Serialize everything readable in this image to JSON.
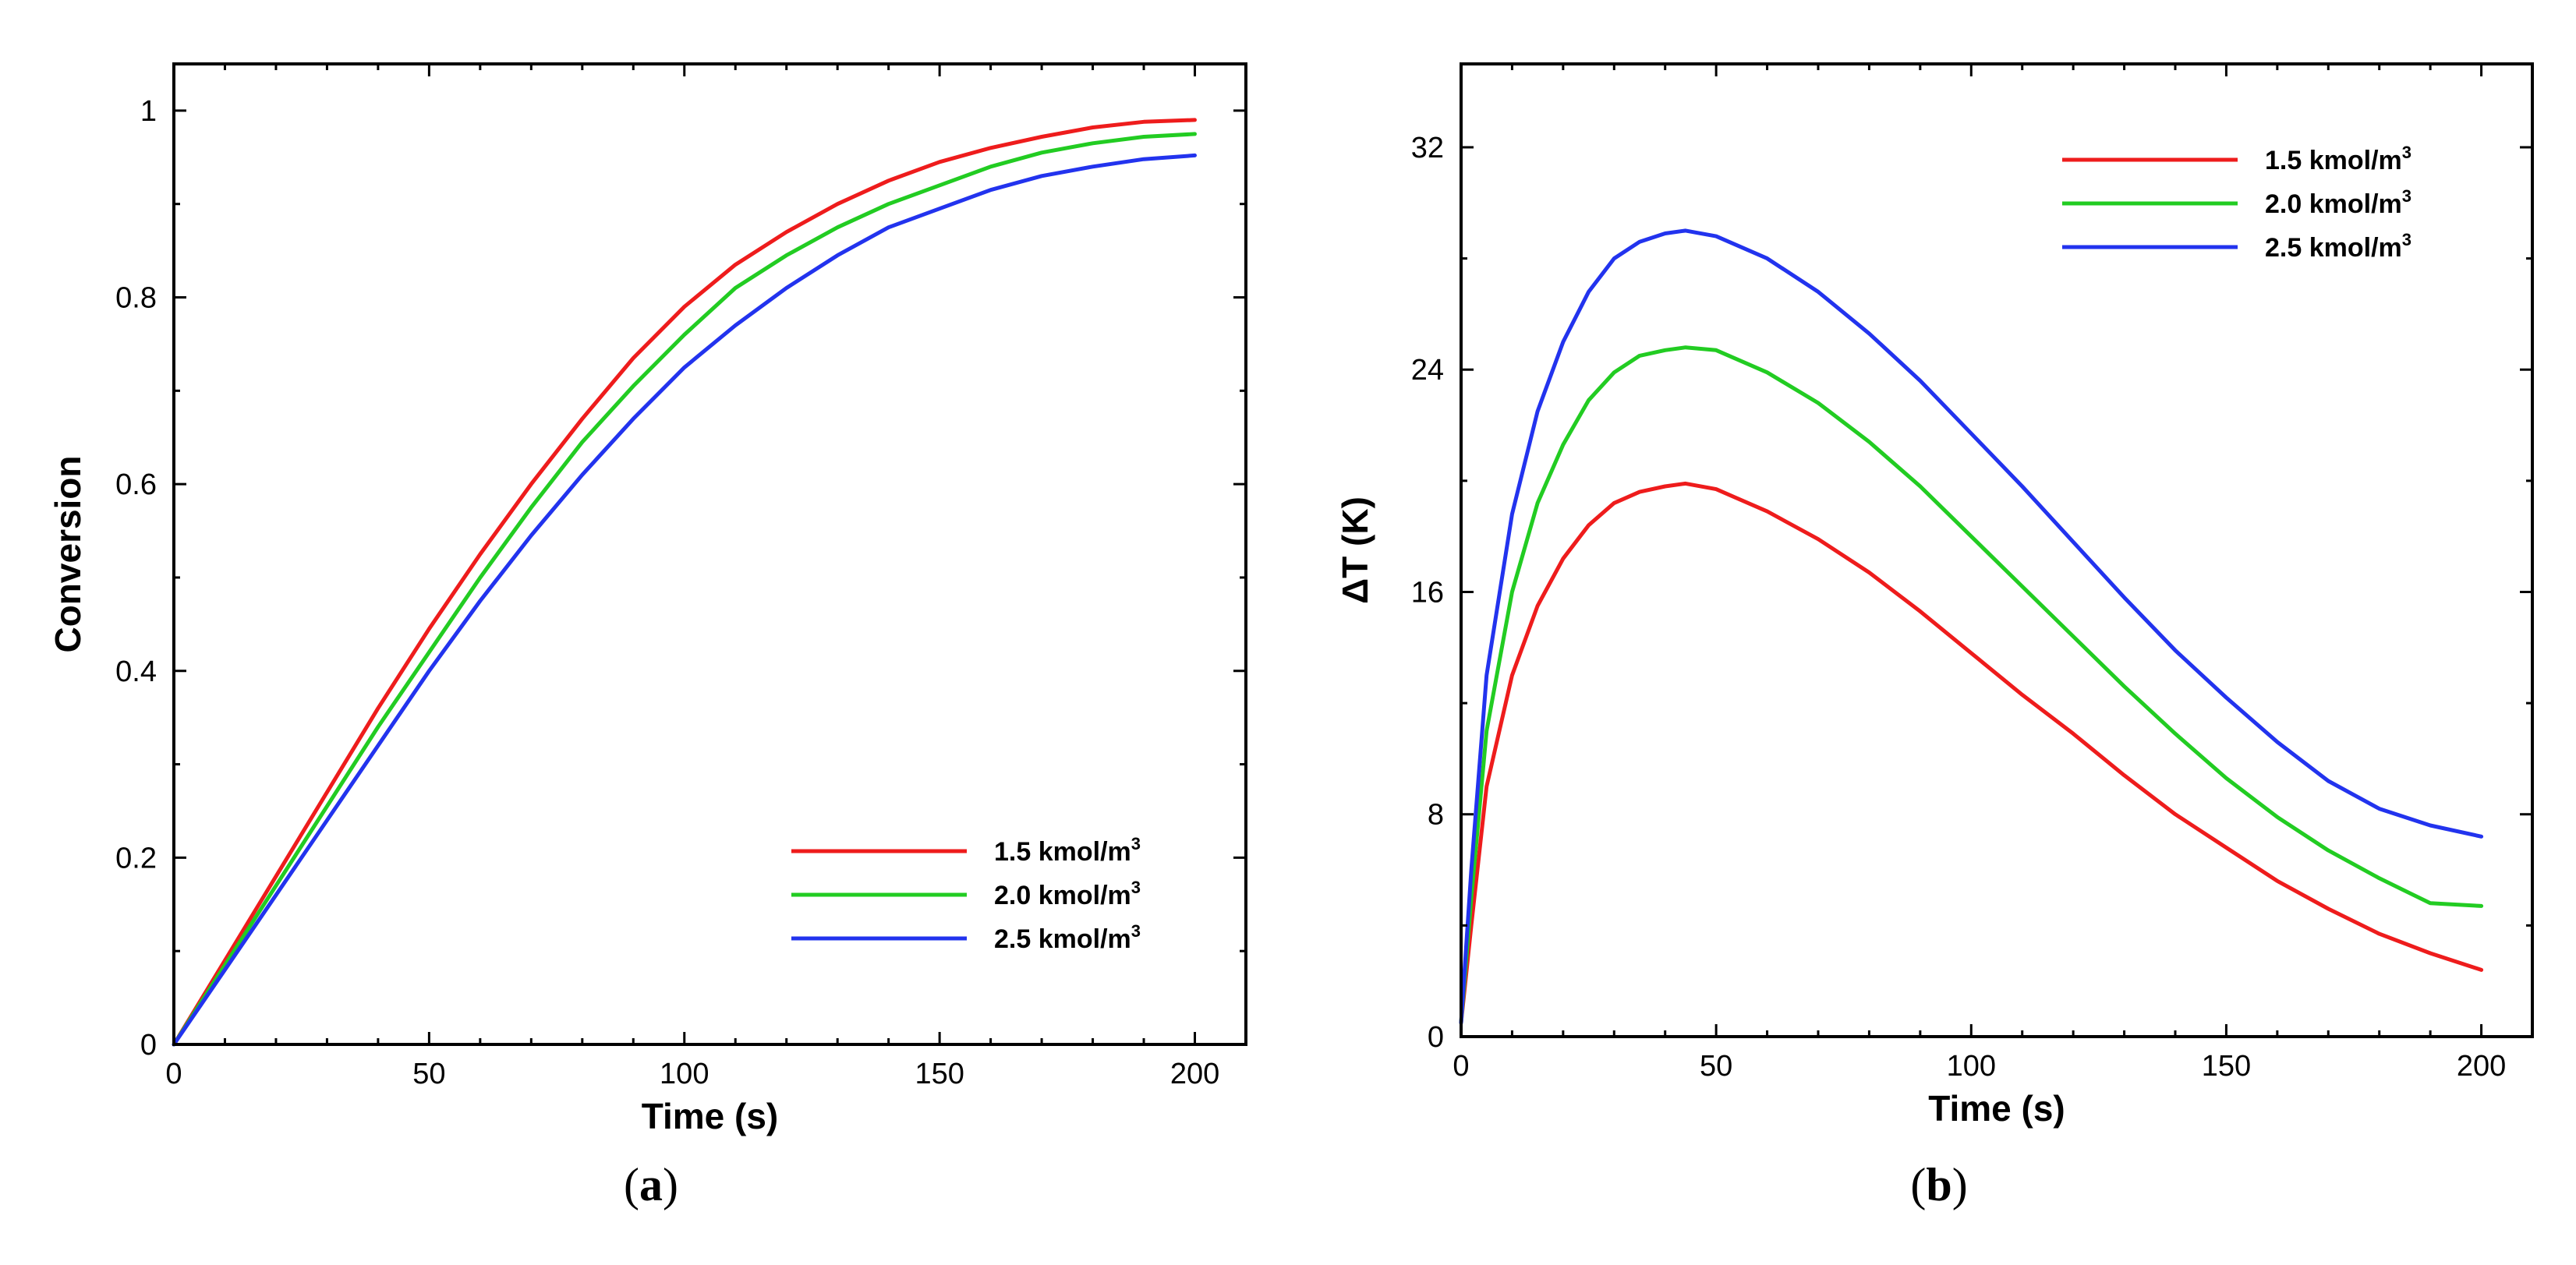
{
  "chart_data": [
    {
      "type": "line",
      "panel": "a",
      "caption_letter": "a",
      "xlabel": "Time (s)",
      "ylabel": "Conversion",
      "xlim": [
        0,
        210
      ],
      "ylim": [
        0,
        1.05
      ],
      "xticks": [
        0,
        50,
        100,
        150,
        200
      ],
      "xtick_labels": [
        "0",
        "50",
        "100",
        "150",
        "200"
      ],
      "yticks": [
        0,
        0.2,
        0.4,
        0.6,
        0.8,
        1
      ],
      "ytick_labels": [
        "0",
        "0.2",
        "0.4",
        "0.6",
        "0.8",
        "1"
      ],
      "legend_position": "bottom-right",
      "x": [
        0,
        10,
        20,
        30,
        40,
        50,
        60,
        70,
        80,
        90,
        100,
        110,
        120,
        130,
        140,
        150,
        160,
        170,
        180,
        190,
        200
      ],
      "series": [
        {
          "name": "1.5 kmol/m",
          "sup": "3",
          "color": "#ee1c1c",
          "values": [
            0,
            0.09,
            0.18,
            0.27,
            0.36,
            0.445,
            0.525,
            0.6,
            0.67,
            0.735,
            0.79,
            0.835,
            0.87,
            0.9,
            0.925,
            0.945,
            0.96,
            0.972,
            0.982,
            0.988,
            0.99
          ]
        },
        {
          "name": "2.0 kmol/m",
          "sup": "3",
          "color": "#22cc22",
          "values": [
            0,
            0.085,
            0.17,
            0.255,
            0.34,
            0.42,
            0.5,
            0.575,
            0.645,
            0.705,
            0.76,
            0.81,
            0.845,
            0.875,
            0.9,
            0.92,
            0.94,
            0.955,
            0.965,
            0.972,
            0.975
          ]
        },
        {
          "name": "2.5 kmol/m",
          "sup": "3",
          "color": "#2233ee",
          "values": [
            0,
            0.08,
            0.16,
            0.24,
            0.32,
            0.4,
            0.475,
            0.545,
            0.61,
            0.67,
            0.725,
            0.77,
            0.81,
            0.845,
            0.875,
            0.895,
            0.915,
            0.93,
            0.94,
            0.948,
            0.952
          ]
        }
      ]
    },
    {
      "type": "line",
      "panel": "b",
      "caption_letter": "b",
      "xlabel": "Time (s)",
      "ylabel": "ΔT (K)",
      "xlim": [
        0,
        210
      ],
      "ylim": [
        0,
        35
      ],
      "xticks": [
        0,
        50,
        100,
        150,
        200
      ],
      "xtick_labels": [
        "0",
        "50",
        "100",
        "150",
        "200"
      ],
      "yticks": [
        0,
        8,
        16,
        24,
        32
      ],
      "ytick_labels": [
        "0",
        "8",
        "16",
        "24",
        "32"
      ],
      "legend_position": "top-right",
      "x": [
        0,
        2,
        5,
        10,
        15,
        20,
        25,
        30,
        35,
        40,
        44,
        50,
        60,
        70,
        80,
        90,
        100,
        110,
        120,
        130,
        140,
        150,
        160,
        170,
        180,
        190,
        200
      ],
      "series": [
        {
          "name": "1.5 kmol/m",
          "sup": "3",
          "color": "#ee1c1c",
          "values": [
            0.5,
            4.0,
            9.0,
            13.0,
            15.5,
            17.2,
            18.4,
            19.2,
            19.6,
            19.8,
            19.9,
            19.7,
            18.9,
            17.9,
            16.7,
            15.3,
            13.8,
            12.3,
            10.9,
            9.4,
            8.0,
            6.8,
            5.6,
            4.6,
            3.7,
            3.0,
            2.4
          ]
        },
        {
          "name": "2.0 kmol/m",
          "sup": "3",
          "color": "#22cc22",
          "values": [
            0.5,
            5.0,
            11.0,
            16.0,
            19.2,
            21.3,
            22.9,
            23.9,
            24.5,
            24.7,
            24.8,
            24.7,
            23.9,
            22.8,
            21.4,
            19.8,
            18.0,
            16.2,
            14.4,
            12.6,
            10.9,
            9.3,
            7.9,
            6.7,
            5.7,
            4.8,
            4.7
          ]
        },
        {
          "name": "2.5 kmol/m",
          "sup": "3",
          "color": "#2233ee",
          "values": [
            0.5,
            6.0,
            13.0,
            18.8,
            22.5,
            25.0,
            26.8,
            28.0,
            28.6,
            28.9,
            29.0,
            28.8,
            28.0,
            26.8,
            25.3,
            23.6,
            21.7,
            19.8,
            17.8,
            15.8,
            13.9,
            12.2,
            10.6,
            9.2,
            8.2,
            7.6,
            7.2
          ]
        }
      ]
    }
  ]
}
